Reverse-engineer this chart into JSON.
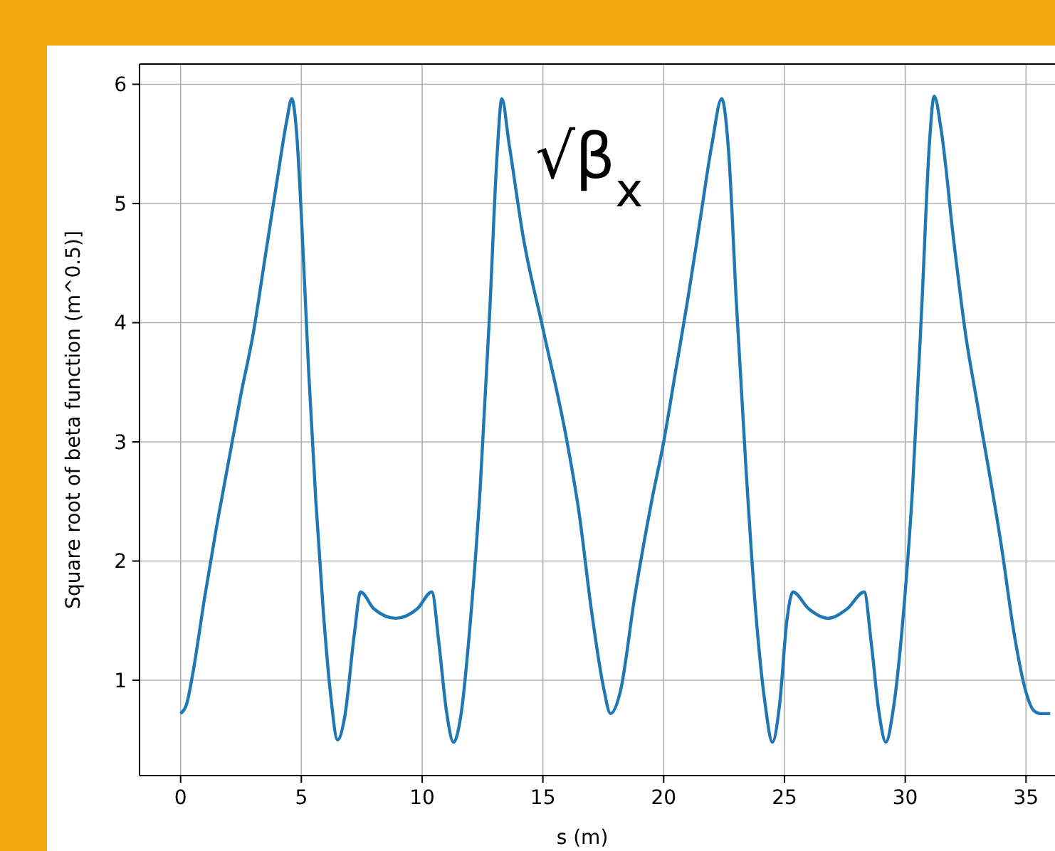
{
  "chart_data": {
    "type": "line",
    "xlabel": "s (m)",
    "ylabel": "Square root of beta function (m^0.5)]",
    "annotations": [
      "√β$_{x}$"
    ],
    "x": [
      0,
      0.25,
      0.5,
      1,
      1.5,
      2,
      2.5,
      3,
      3.5,
      4,
      4.4,
      4.6,
      4.8,
      5,
      5.3,
      5.6,
      5.9,
      6.2,
      6.5,
      6.8,
      7.2,
      7.45,
      8,
      8.9,
      9.8,
      10.4,
      10.7,
      11,
      11.3,
      11.6,
      12,
      12.4,
      12.8,
      13.1,
      13.3,
      13.6,
      14.2,
      15,
      16,
      16.5,
      17,
      17.5,
      17.8,
      18.2,
      18.8,
      19.5,
      20,
      20.5,
      21,
      21.5,
      22,
      22.4,
      22.7,
      23,
      23.4,
      23.8,
      24.2,
      24.5,
      24.8,
      25.1,
      25.35,
      26,
      26.8,
      27.6,
      28.3,
      28.6,
      28.9,
      29.2,
      29.5,
      29.9,
      30.3,
      30.7,
      31,
      31.2,
      31.5,
      32,
      32.5,
      33,
      34,
      34.5,
      35,
      35.3,
      35.6,
      36
    ],
    "series": [
      {
        "color": "#1f77b4",
        "values": [
          0.72,
          0.8,
          1.05,
          1.7,
          2.3,
          2.85,
          3.4,
          3.9,
          4.55,
          5.2,
          5.7,
          5.88,
          5.6,
          4.9,
          3.6,
          2.5,
          1.6,
          0.9,
          0.5,
          0.7,
          1.4,
          1.74,
          1.6,
          1.52,
          1.6,
          1.74,
          1.3,
          0.75,
          0.48,
          0.7,
          1.5,
          2.6,
          4.1,
          5.4,
          5.88,
          5.5,
          4.7,
          3.95,
          3.0,
          2.4,
          1.6,
          0.95,
          0.72,
          0.9,
          1.7,
          2.5,
          3.0,
          3.6,
          4.2,
          4.85,
          5.5,
          5.88,
          5.4,
          4.2,
          2.8,
          1.6,
          0.8,
          0.48,
          0.8,
          1.5,
          1.74,
          1.6,
          1.52,
          1.6,
          1.74,
          1.3,
          0.75,
          0.48,
          0.75,
          1.5,
          2.6,
          4.2,
          5.5,
          5.9,
          5.6,
          4.7,
          3.9,
          3.3,
          2.1,
          1.4,
          0.9,
          0.75,
          0.72,
          0.72
        ]
      }
    ],
    "xlim": [
      -1.7,
      36.2
    ],
    "xticks": [
      0,
      5,
      10,
      15,
      20,
      25,
      30,
      35
    ],
    "ylim": [
      0.2,
      6.17
    ],
    "yticks": [
      1,
      2,
      3,
      4,
      5,
      6
    ],
    "grid": true,
    "marker": "none",
    "line_style": "solid"
  }
}
